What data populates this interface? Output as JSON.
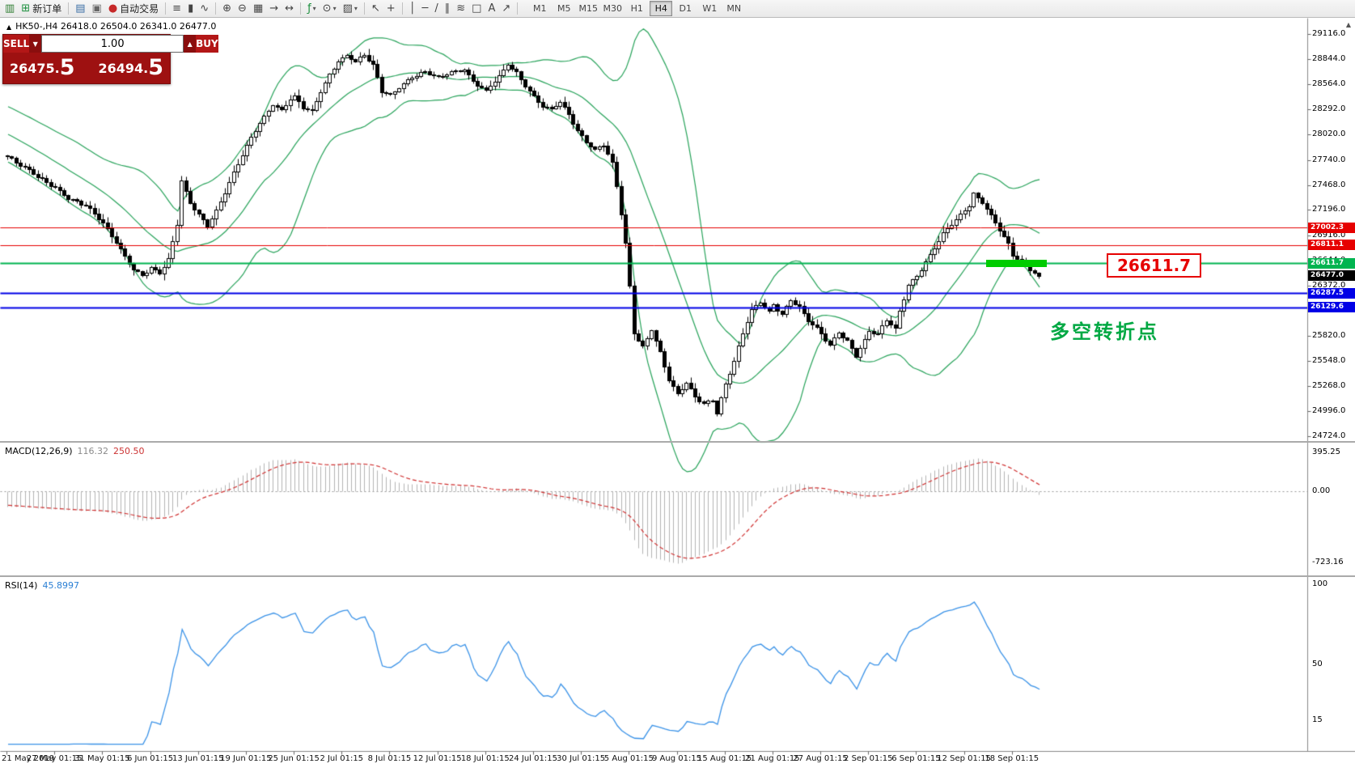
{
  "colors": {
    "band_green": "#27a35a",
    "segment_green": "#00cc00",
    "annotation_green": "#00a843",
    "line_red": "#e60000",
    "line_blue": "#0000e6",
    "line_green": "#00b450",
    "rsi_blue": "#3b93e8",
    "macd_signal_red": "#d03030",
    "macd_hist": "#b4b4b4",
    "current_tag_bg": "#000000",
    "panel_red": "#9e1111"
  },
  "icons": {
    "dropdown": "▾",
    "collapse": "▲",
    "vol_up": "▲",
    "vol_down": "▼",
    "scroll_up": "▲"
  },
  "toolbar": {
    "items": [
      {
        "type": "icon",
        "name": "app-chart-icon",
        "glyph": "▥",
        "color": "#2f7d32"
      },
      {
        "type": "button",
        "name": "new-order-button",
        "glyph": "⊞",
        "color": "#1a8f3c",
        "label": "新订单"
      },
      {
        "type": "sep"
      },
      {
        "type": "icon",
        "name": "market-watch-icon",
        "glyph": "▤",
        "color": "#3a6ea5"
      },
      {
        "type": "icon",
        "name": "data-window-icon",
        "glyph": "▣",
        "color": "#666666"
      },
      {
        "type": "button",
        "name": "auto-trading-button",
        "glyph": "●",
        "color": "#c62828",
        "label": "自动交易"
      },
      {
        "type": "sep"
      },
      {
        "type": "icon",
        "name": "bar-chart-icon",
        "glyph": "≡",
        "color": "#444444"
      },
      {
        "type": "icon",
        "name": "candlestick-chart-icon",
        "glyph": "▮",
        "color": "#444444"
      },
      {
        "type": "icon",
        "name": "line-chart-icon",
        "glyph": "∿",
        "color": "#444444"
      },
      {
        "type": "sep"
      },
      {
        "type": "icon",
        "name": "zoom-in-icon",
        "glyph": "⊕",
        "color": "#444444"
      },
      {
        "type": "icon",
        "name": "zoom-out-icon",
        "glyph": "⊖",
        "color": "#444444"
      },
      {
        "type": "icon",
        "name": "tile-windows-icon",
        "glyph": "▦",
        "color": "#444444"
      },
      {
        "type": "icon",
        "name": "auto-scroll-icon",
        "glyph": "→",
        "color": "#444444"
      },
      {
        "type": "icon",
        "name": "chart-shift-icon",
        "glyph": "↔",
        "color": "#444444"
      },
      {
        "type": "sep"
      },
      {
        "type": "icon",
        "name": "indicators-icon",
        "glyph": "ƒ",
        "color": "#1a8f3c",
        "dropdown": true
      },
      {
        "type": "icon",
        "name": "periods-icon",
        "glyph": "⊙",
        "color": "#444444",
        "dropdown": true
      },
      {
        "type": "icon",
        "name": "templates-icon",
        "glyph": "▨",
        "color": "#444444",
        "dropdown": true
      },
      {
        "type": "sep"
      },
      {
        "type": "icon",
        "name": "cursor-icon",
        "glyph": "↖",
        "color": "#444444"
      },
      {
        "type": "icon",
        "name": "crosshair-icon",
        "glyph": "+",
        "color": "#444444"
      },
      {
        "type": "sep"
      },
      {
        "type": "icon",
        "name": "vertical-line-icon",
        "glyph": "│",
        "color": "#444444"
      },
      {
        "type": "icon",
        "name": "horizontal-line-icon",
        "glyph": "─",
        "color": "#444444"
      },
      {
        "type": "icon",
        "name": "trendline-icon",
        "glyph": "/",
        "color": "#444444"
      },
      {
        "type": "icon",
        "name": "channel-icon",
        "glyph": "∥",
        "color": "#444444"
      },
      {
        "type": "icon",
        "name": "fibonacci-icon",
        "glyph": "≋",
        "color": "#444444"
      },
      {
        "type": "icon",
        "name": "shapes-icon",
        "glyph": "□",
        "color": "#444444"
      },
      {
        "type": "icon",
        "name": "text-icon",
        "glyph": "A",
        "color": "#444444"
      },
      {
        "type": "icon",
        "name": "arrow-tools-icon",
        "glyph": "↗",
        "color": "#444444"
      },
      {
        "type": "sep"
      }
    ],
    "timeframes": [
      "M1",
      "M5",
      "M15",
      "M30",
      "H1",
      "H4",
      "D1",
      "W1",
      "MN"
    ],
    "active_timeframe": "H4"
  },
  "trade_panel": {
    "sell_label": "SELL",
    "buy_label": "BUY",
    "volume": "1.00",
    "sell_price_main": "26475.",
    "sell_price_big": "5",
    "buy_price_main": "26494.",
    "buy_price_big": "5"
  },
  "macd": {
    "title": "MACD(12,26,9)",
    "value": "116.32",
    "signal_value": "250.50",
    "axis_labels": [
      "395.25",
      "0.00",
      "-723.16"
    ],
    "params": {
      "fast": 12,
      "slow": 26,
      "signal": 9
    }
  },
  "rsi": {
    "title": "RSI(14)",
    "value": "45.8997",
    "period": 14,
    "axis_labels": [
      "100",
      "50",
      "15"
    ]
  },
  "chart_data": {
    "type": "candlestick",
    "symbol": "HK50-",
    "timeframe": "H4",
    "header_line": "HK50-,H4 26418.0 26504.0 26341.0 26477.0",
    "ohlc": {
      "open": "26418.0",
      "high": "26504.0",
      "low": "26341.0",
      "close": "26477.0"
    },
    "price_scale": {
      "max": 29293,
      "min": 24671
    },
    "price_axis": {
      "labels": [
        "29116.0",
        "28844.0",
        "28564.0",
        "28292.0",
        "28020.0",
        "27740.0",
        "27468.0",
        "27196.0",
        "26916.0",
        "26644.0",
        "26372.0",
        "26092.0",
        "25820.0",
        "25548.0",
        "25268.0",
        "24996.0",
        "24724.0"
      ]
    },
    "time_axis": {
      "labels": [
        "21 May 2019",
        "27 May 01:15",
        "31 May 01:15",
        "6 Jun 01:15",
        "13 Jun 01:15",
        "19 Jun 01:15",
        "25 Jun 01:15",
        "2 Jul 01:15",
        "8 Jul 01:15",
        "12 Jul 01:15",
        "18 Jul 01:15",
        "24 Jul 01:15",
        "30 Jul 01:15",
        "5 Aug 01:15",
        "9 Aug 01:15",
        "15 Aug 01:15",
        "21 Aug 01:15",
        "27 Aug 01:15",
        "2 Sep 01:15",
        "6 Sep 01:15",
        "12 Sep 01:15",
        "18 Sep 01:15"
      ]
    },
    "horizontal_lines": [
      {
        "label": "27002.3",
        "color": "#e60000",
        "width": 1
      },
      {
        "label": "26811.1",
        "color": "#e60000",
        "width": 1
      },
      {
        "label": "26611.7",
        "color": "#00b450",
        "width": 2
      },
      {
        "label": "26287.5",
        "color": "#0000e6",
        "width": 2
      },
      {
        "label": "26129.6",
        "color": "#0000e6",
        "width": 2
      }
    ],
    "current_price": {
      "label": "26477.0"
    },
    "callout_text": "26611.7",
    "annotation_text": "多空转折点",
    "highlight_segment": {
      "from_candle": 225,
      "to_candle": 239
    },
    "bollinger": {
      "period": 20,
      "deviation": 2
    },
    "num_candles": 238,
    "close_anchors": [
      [
        0,
        27780
      ],
      [
        3,
        27680
      ],
      [
        6,
        27590
      ],
      [
        9,
        27500
      ],
      [
        11,
        27450
      ],
      [
        14,
        27330
      ],
      [
        18,
        27240
      ],
      [
        22,
        27050
      ],
      [
        25,
        26850
      ],
      [
        27,
        26700
      ],
      [
        29,
        26550
      ],
      [
        31,
        26480
      ],
      [
        33,
        26560
      ],
      [
        35,
        26500
      ],
      [
        37,
        26650
      ],
      [
        39,
        27050
      ],
      [
        40,
        27520
      ],
      [
        42,
        27280
      ],
      [
        44,
        27150
      ],
      [
        46,
        27020
      ],
      [
        48,
        27180
      ],
      [
        50,
        27380
      ],
      [
        52,
        27600
      ],
      [
        55,
        27900
      ],
      [
        57,
        28080
      ],
      [
        59,
        28220
      ],
      [
        61,
        28350
      ],
      [
        63,
        28280
      ],
      [
        65,
        28400
      ],
      [
        66,
        28430
      ],
      [
        68,
        28310
      ],
      [
        70,
        28280
      ],
      [
        72,
        28500
      ],
      [
        74,
        28680
      ],
      [
        76,
        28820
      ],
      [
        78,
        28880
      ],
      [
        80,
        28810
      ],
      [
        82,
        28890
      ],
      [
        84,
        28780
      ],
      [
        86,
        28500
      ],
      [
        88,
        28460
      ],
      [
        90,
        28540
      ],
      [
        93,
        28640
      ],
      [
        96,
        28700
      ],
      [
        99,
        28640
      ],
      [
        102,
        28710
      ],
      [
        105,
        28740
      ],
      [
        107,
        28600
      ],
      [
        110,
        28490
      ],
      [
        113,
        28650
      ],
      [
        115,
        28790
      ],
      [
        117,
        28700
      ],
      [
        119,
        28560
      ],
      [
        121,
        28440
      ],
      [
        123,
        28330
      ],
      [
        125,
        28290
      ],
      [
        127,
        28370
      ],
      [
        129,
        28240
      ],
      [
        131,
        28060
      ],
      [
        133,
        27950
      ],
      [
        135,
        27860
      ],
      [
        137,
        27910
      ],
      [
        139,
        27700
      ],
      [
        140,
        27450
      ],
      [
        141,
        27150
      ],
      [
        142,
        26820
      ],
      [
        143,
        26350
      ],
      [
        144,
        25850
      ],
      [
        146,
        25700
      ],
      [
        148,
        25900
      ],
      [
        150,
        25650
      ],
      [
        152,
        25350
      ],
      [
        154,
        25180
      ],
      [
        156,
        25300
      ],
      [
        158,
        25150
      ],
      [
        160,
        25080
      ],
      [
        162,
        25120
      ],
      [
        163,
        24990
      ],
      [
        165,
        25300
      ],
      [
        167,
        25550
      ],
      [
        169,
        25850
      ],
      [
        171,
        26100
      ],
      [
        173,
        26180
      ],
      [
        175,
        26080
      ],
      [
        176,
        26160
      ],
      [
        178,
        26060
      ],
      [
        180,
        26220
      ],
      [
        182,
        26140
      ],
      [
        184,
        25990
      ],
      [
        186,
        25900
      ],
      [
        187,
        25840
      ],
      [
        189,
        25710
      ],
      [
        191,
        25860
      ],
      [
        193,
        25770
      ],
      [
        195,
        25610
      ],
      [
        197,
        25780
      ],
      [
        198,
        25880
      ],
      [
        200,
        25840
      ],
      [
        202,
        25990
      ],
      [
        204,
        25890
      ],
      [
        205,
        26080
      ],
      [
        207,
        26380
      ],
      [
        209,
        26480
      ],
      [
        211,
        26630
      ],
      [
        213,
        26790
      ],
      [
        215,
        26940
      ],
      [
        217,
        27040
      ],
      [
        219,
        27130
      ],
      [
        221,
        27240
      ],
      [
        222,
        27370
      ],
      [
        224,
        27290
      ],
      [
        226,
        27140
      ],
      [
        228,
        26990
      ],
      [
        230,
        26820
      ],
      [
        231,
        26700
      ],
      [
        233,
        26620
      ],
      [
        235,
        26540
      ],
      [
        237,
        26477
      ]
    ]
  }
}
